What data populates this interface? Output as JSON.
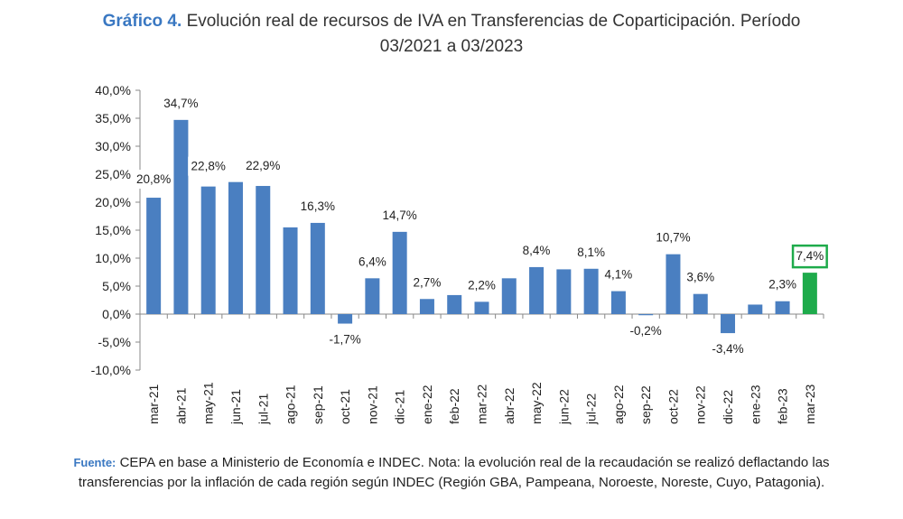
{
  "title": {
    "prefix": "Gráfico 4.",
    "line1": "Evolución real de recursos de IVA en Transferencias de Coparticipación. Período",
    "line2": "03/2021 a 03/2023"
  },
  "source": {
    "prefix": "Fuente:",
    "text": "CEPA en base a Ministerio de Economía e INDEC. Nota: la evolución real de la recaudación se realizó deflactando las transferencias por la inflación de cada región según INDEC (Región GBA, Pampeana, Noroeste, Noreste, Cuyo, Patagonia)."
  },
  "chart_data": {
    "type": "bar",
    "categories": [
      "mar-21",
      "abr-21",
      "may-21",
      "jun-21",
      "jul-21",
      "ago-21",
      "sep-21",
      "oct-21",
      "nov-21",
      "dic-21",
      "ene-22",
      "feb-22",
      "mar-22",
      "abr-22",
      "may-22",
      "jun-22",
      "jul-22",
      "ago-22",
      "sep-22",
      "oct-22",
      "nov-22",
      "dic-22",
      "ene-23",
      "feb-23",
      "mar-23"
    ],
    "values": [
      20.8,
      34.7,
      22.8,
      23.6,
      22.9,
      15.5,
      16.3,
      -1.7,
      6.4,
      14.7,
      2.7,
      3.4,
      2.2,
      6.4,
      8.4,
      8.0,
      8.1,
      4.1,
      -0.2,
      10.7,
      3.6,
      -3.4,
      1.7,
      2.3,
      7.4
    ],
    "data_labels": [
      "20,8%",
      "34,7%",
      "22,8%",
      "",
      "22,9%",
      "",
      "16,3%",
      "-1,7%",
      "6,4%",
      "14,7%",
      "2,7%",
      "",
      "2,2%",
      "",
      "8,4%",
      "",
      "8,1%",
      "4,1%",
      "-0,2%",
      "10,7%",
      "3,6%",
      "-3,4%",
      "",
      "2,3%",
      "7,4%"
    ],
    "y_ticks": [
      "40,0%",
      "35,0%",
      "30,0%",
      "25,0%",
      "20,0%",
      "15,0%",
      "10,0%",
      "5,0%",
      "0,0%",
      "-5,0%",
      "-10,0%"
    ],
    "ylim": [
      -10,
      40
    ],
    "grid": false,
    "colors": {
      "bar": "#4a7fc1",
      "highlight": "#1eab4b",
      "highlight_border": "#1eab4b"
    },
    "highlight_index": 24
  }
}
